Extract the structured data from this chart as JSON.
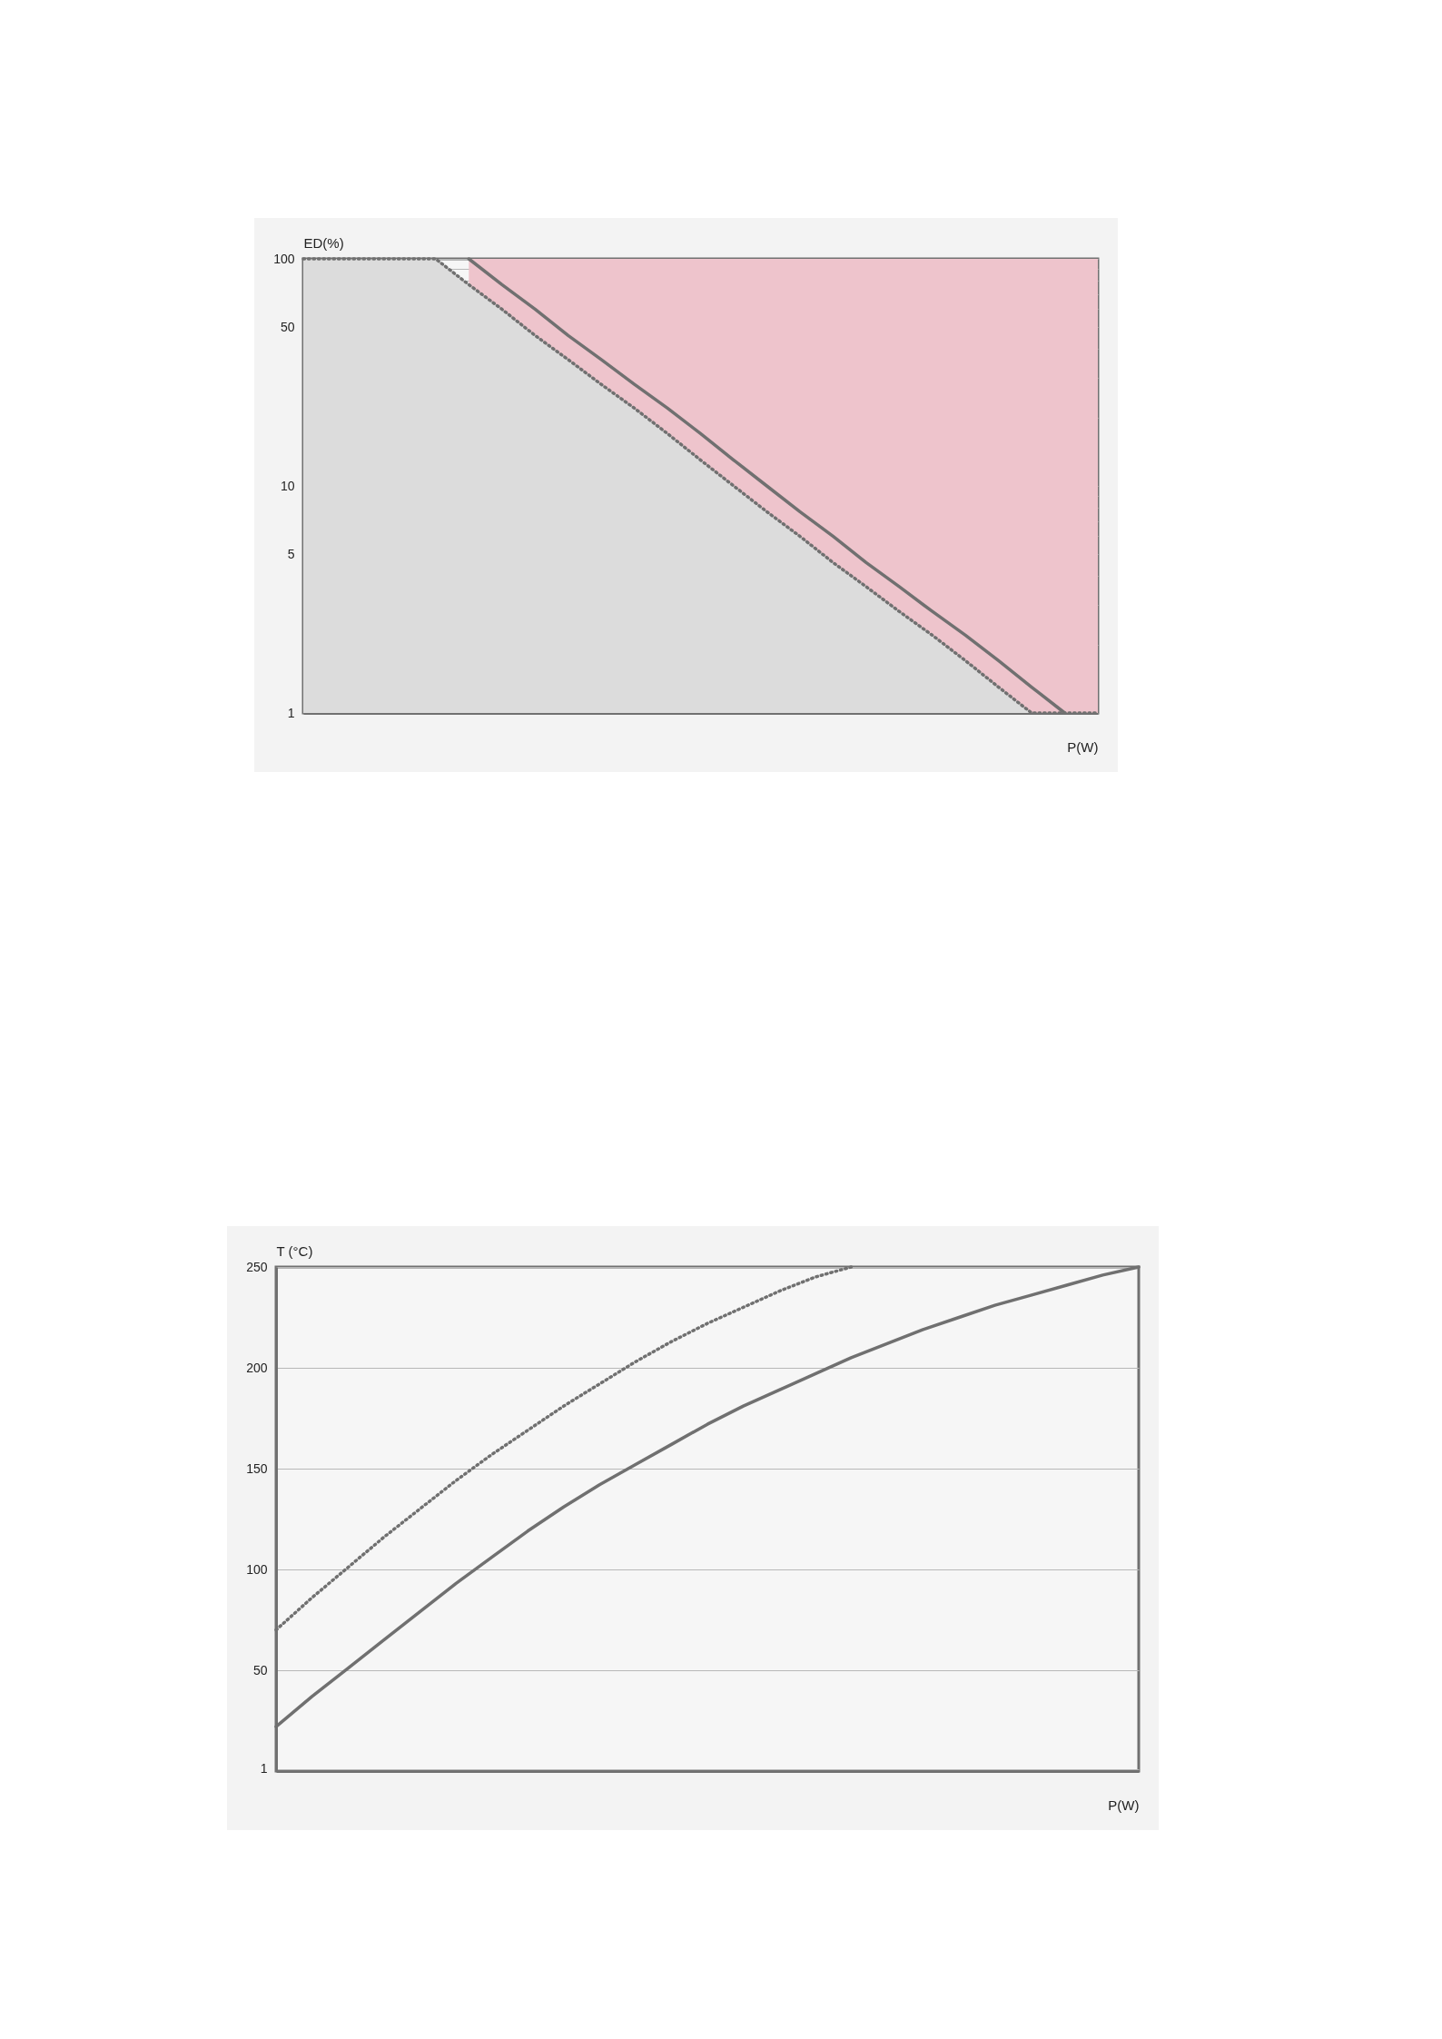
{
  "chart_data": [
    {
      "type": "area",
      "xlabel": "P(W)",
      "ylabel": "ED(%)",
      "log": "y",
      "grid": "y",
      "tick_labels": "y",
      "ylim": [
        1,
        100
      ],
      "yticks": [
        1,
        {
          "value": 2,
          "label": null
        },
        {
          "value": 3,
          "label": null
        },
        {
          "value": 4,
          "label": null
        },
        5,
        {
          "value": 6,
          "label": null
        },
        {
          "value": 7,
          "label": null
        },
        {
          "value": 8,
          "label": null
        },
        {
          "value": 9,
          "label": null
        },
        10,
        {
          "value": 20,
          "label": null
        },
        {
          "value": 30,
          "label": null
        },
        {
          "value": 40,
          "label": null
        },
        50,
        {
          "value": 60,
          "label": null
        },
        {
          "value": 70,
          "label": null
        },
        {
          "value": 80,
          "label": null
        },
        {
          "value": 90,
          "label": null
        },
        100
      ],
      "categories": [
        null,
        null,
        null,
        null,
        null,
        null,
        null,
        null,
        null,
        null,
        null,
        null,
        null,
        null,
        null,
        null,
        null,
        null,
        null,
        null,
        null,
        null,
        null,
        null,
        null
      ],
      "series": [
        {
          "color": "#eec4cc",
          "values": [
            null,
            null,
            null,
            null,
            null,
            100,
            100,
            100,
            100,
            100,
            100,
            100,
            100,
            100,
            100,
            100,
            100,
            100,
            100,
            100,
            100,
            100,
            100,
            100,
            100
          ]
        },
        {
          "color": "#dcdcdc",
          "line_style": "dotted",
          "values": [
            100,
            100,
            100,
            100,
            100,
            77,
            60,
            46,
            36,
            28,
            22,
            17,
            13,
            10,
            7.7,
            6,
            4.6,
            3.6,
            2.8,
            2.2,
            1.7,
            1.3,
            1,
            1,
            1
          ]
        },
        {
          "type": "line",
          "color": "#707070",
          "line_style": "solid",
          "values": [
            null,
            null,
            null,
            null,
            null,
            100,
            77,
            60,
            46,
            36,
            28,
            22,
            17,
            13,
            10,
            7.7,
            6,
            4.6,
            3.6,
            2.8,
            2.2,
            1.7,
            1.3,
            1,
            null
          ]
        }
      ]
    },
    {
      "type": "line",
      "xlabel": "P(W)",
      "ylabel": "T (°C)",
      "grid": "y",
      "tick_labels": "y",
      "ylim": [
        0,
        250
      ],
      "yticks": [
        1,
        50,
        100,
        150,
        200,
        250
      ],
      "categories": [
        null,
        null,
        null,
        null,
        null,
        null,
        null,
        null,
        null,
        null,
        null,
        null,
        null,
        null,
        null,
        null,
        null,
        null,
        null,
        null,
        null,
        null,
        null,
        null,
        null
      ],
      "series": [
        {
          "color": "#707070",
          "line_style": "dotted",
          "values": [
            70,
            86,
            101,
            116,
            130,
            144,
            157,
            169,
            181,
            192,
            203,
            213,
            222,
            230,
            238,
            245,
            250,
            null,
            null,
            null,
            null,
            null,
            null,
            null,
            null
          ]
        },
        {
          "color": "#707070",
          "line_style": "solid",
          "values": [
            22,
            37,
            51,
            65,
            79,
            93,
            106,
            119,
            131,
            142,
            152,
            162,
            172,
            181,
            189,
            197,
            205,
            212,
            219,
            225,
            231,
            236,
            241,
            246,
            250
          ]
        }
      ]
    }
  ]
}
